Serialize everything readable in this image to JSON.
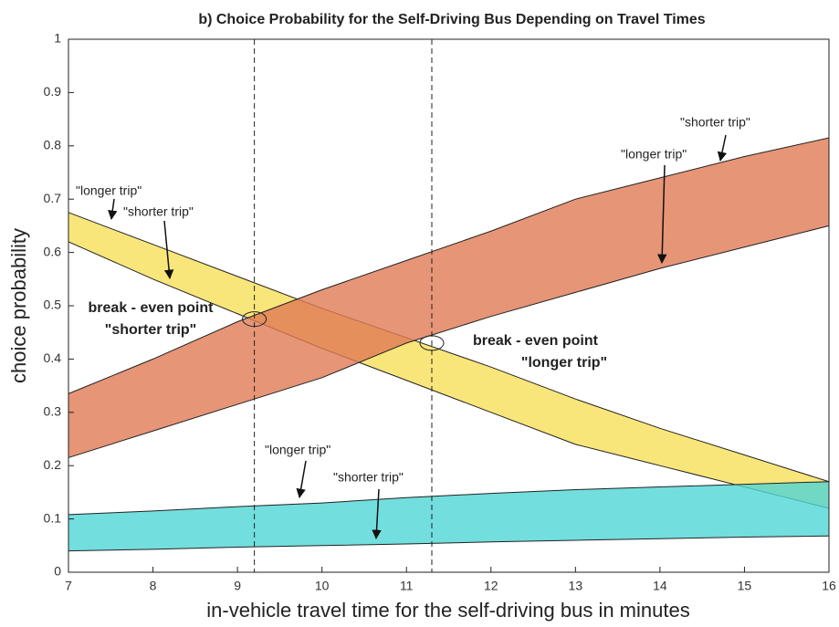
{
  "chart_data": {
    "type": "band",
    "title": "b) Choice Probability for the Self-Driving Bus Depending on Travel Times",
    "x_label": "in-vehicle travel time for the self-driving bus in minutes",
    "y_label": "choice probability",
    "x": [
      7,
      8,
      9,
      10,
      11,
      12,
      13,
      14,
      15,
      16
    ],
    "xlim": [
      7,
      16
    ],
    "xticks": [
      7,
      8,
      9,
      10,
      11,
      12,
      13,
      14,
      15,
      16
    ],
    "ylim": [
      0,
      1
    ],
    "yticks": [
      0,
      0.1,
      0.2,
      0.3,
      0.4,
      0.5,
      0.6,
      0.7,
      0.8,
      0.9,
      1
    ],
    "bands": [
      {
        "color": "#f8e05a",
        "upper": [
          0.675,
          0.615,
          0.555,
          0.495,
          0.44,
          0.385,
          0.325,
          0.27,
          0.22,
          0.17
        ],
        "lower": [
          0.62,
          0.55,
          0.485,
          0.42,
          0.36,
          0.3,
          0.24,
          0.2,
          0.16,
          0.12
        ]
      },
      {
        "color": "#e07a55",
        "upper": [
          0.335,
          0.4,
          0.47,
          0.53,
          0.585,
          0.64,
          0.7,
          0.74,
          0.78,
          0.815
        ],
        "lower": [
          0.215,
          0.265,
          0.315,
          0.365,
          0.43,
          0.48,
          0.525,
          0.57,
          0.61,
          0.65
        ]
      },
      {
        "color": "#4fd6d6",
        "upper": [
          0.108,
          0.115,
          0.123,
          0.13,
          0.14,
          0.148,
          0.155,
          0.16,
          0.165,
          0.17
        ],
        "lower": [
          0.04,
          0.043,
          0.047,
          0.05,
          0.053,
          0.057,
          0.06,
          0.063,
          0.066,
          0.068
        ]
      }
    ],
    "break_even": [
      {
        "x": 9.2,
        "y": 0.475,
        "label": [
          "break - even point",
          "\"shorter trip\""
        ]
      },
      {
        "x": 11.3,
        "y": 0.43,
        "label": [
          "break - even point",
          "\"longer trip\""
        ]
      }
    ],
    "annotations": [
      "\"longer trip\"",
      "\"shorter trip\"",
      "\"shorter trip\"",
      "\"longer trip\"",
      "\"longer trip\"",
      "\"shorter trip\""
    ]
  }
}
